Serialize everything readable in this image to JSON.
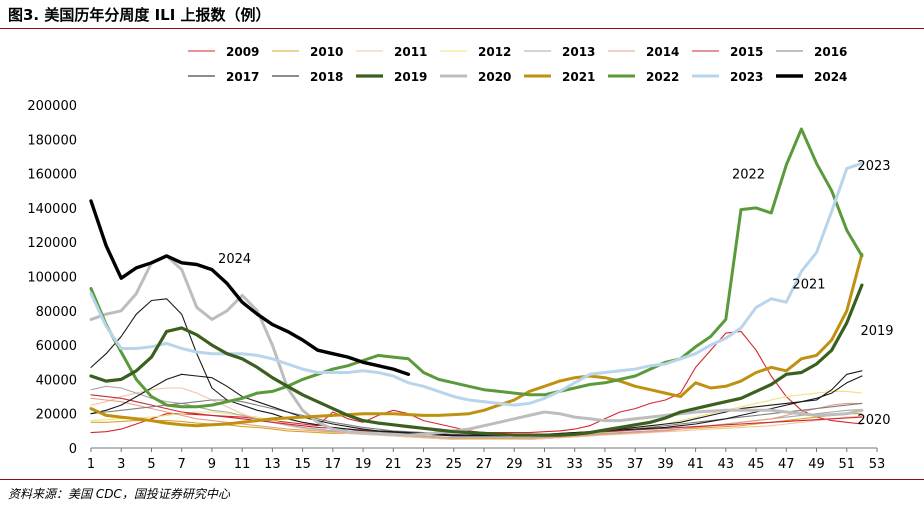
{
  "figure": {
    "title": "图3. 美国历年分周度 ILI 上报数（例）",
    "source": "资料来源：美国 CDC，国投证券研究中心"
  },
  "chart_data": {
    "type": "line",
    "xlim": [
      1,
      53
    ],
    "ylim": [
      0,
      200000
    ],
    "x_ticks": [
      1,
      3,
      5,
      7,
      9,
      11,
      13,
      15,
      17,
      19,
      21,
      23,
      25,
      27,
      29,
      31,
      33,
      35,
      37,
      39,
      41,
      43,
      45,
      47,
      49,
      51,
      53
    ],
    "y_ticks": [
      0,
      20000,
      40000,
      60000,
      80000,
      100000,
      120000,
      140000,
      160000,
      180000,
      200000
    ],
    "legend_position": "top",
    "grid": false,
    "annotations": [
      {
        "text": "2024",
        "x": 10.5,
        "y": 108000
      },
      {
        "text": "2022",
        "x": 44.5,
        "y": 157000
      },
      {
        "text": "2023",
        "x": 52.8,
        "y": 162000
      },
      {
        "text": "2021",
        "x": 48.5,
        "y": 93000
      },
      {
        "text": "2019",
        "x": 53.0,
        "y": 66000
      },
      {
        "text": "2020",
        "x": 52.8,
        "y": 14000
      }
    ],
    "series": [
      {
        "name": "2009",
        "color": "#d9262b",
        "width": 1.1,
        "start": 1,
        "values": [
          9000,
          9500,
          11000,
          14000,
          17000,
          20000,
          20000,
          19500,
          19000,
          18500,
          18000,
          17000,
          16000,
          15000,
          14000,
          13000,
          21000,
          17000,
          15000,
          19000,
          22000,
          20000,
          16000,
          14000,
          12000,
          10000,
          9000,
          9000,
          9000,
          9000,
          9500,
          10000,
          11000,
          13000,
          17000,
          21000,
          23000,
          26000,
          28000,
          32000,
          47000,
          57000,
          67000,
          68000,
          57000,
          42000,
          30000,
          22000,
          18000,
          16000,
          15000,
          14000
        ]
      },
      {
        "name": "2010",
        "color": "#d7a624",
        "width": 1.1,
        "start": 1,
        "values": [
          15000,
          15000,
          15500,
          16000,
          16000,
          16000,
          15500,
          14500,
          14000,
          13500,
          12500,
          12000,
          11000,
          10000,
          9500,
          9000,
          8500,
          8500,
          8000,
          7500,
          7000,
          6500,
          6000,
          5500,
          5000,
          5000,
          5000,
          5000,
          5000,
          5000,
          5500,
          6000,
          6500,
          7000,
          8000,
          8500,
          9000,
          9500,
          10000,
          11000,
          11500,
          12000,
          12500,
          13000,
          14000,
          15000,
          16000,
          17000,
          18000,
          19000,
          20000,
          20000
        ]
      },
      {
        "name": "2011",
        "color": "#f4c3a3",
        "width": 1.1,
        "start": 1,
        "values": [
          25000,
          27000,
          30000,
          32000,
          34000,
          35000,
          35000,
          32000,
          28000,
          24000,
          20000,
          17000,
          15000,
          13000,
          11500,
          10000,
          9000,
          8500,
          8000,
          7500,
          7000,
          6500,
          6000,
          5500,
          5000,
          5000,
          5000,
          5000,
          5000,
          5000,
          5500,
          6000,
          6500,
          7000,
          7500,
          8000,
          8500,
          9000,
          9500,
          10000,
          10500,
          11000,
          11500,
          12000,
          12500,
          13000,
          14000,
          15000,
          16000,
          17000,
          18000,
          18500
        ]
      },
      {
        "name": "2012",
        "color": "#f0e37a",
        "width": 1.1,
        "start": 1,
        "values": [
          16000,
          16500,
          17000,
          17500,
          18000,
          19000,
          20000,
          21000,
          21000,
          20000,
          19000,
          18000,
          16000,
          14000,
          12000,
          10500,
          9500,
          9000,
          8500,
          8000,
          7500,
          7000,
          6500,
          6000,
          5500,
          5000,
          5000,
          5000,
          5000,
          5500,
          6000,
          6500,
          7000,
          8000,
          9000,
          10000,
          11000,
          12500,
          14000,
          16000,
          18000,
          20000,
          22000,
          24000,
          26000,
          28000,
          30000,
          31000,
          32000,
          33000,
          33000,
          32000
        ]
      },
      {
        "name": "2013",
        "color": "#a8a8a8",
        "width": 1.1,
        "start": 1,
        "values": [
          34000,
          36000,
          35000,
          32000,
          29000,
          27000,
          26000,
          24000,
          22000,
          21000,
          19000,
          17000,
          15000,
          13500,
          12000,
          11000,
          10000,
          9500,
          9000,
          8500,
          8000,
          7500,
          7000,
          6500,
          6000,
          6000,
          6000,
          6000,
          6000,
          6000,
          6500,
          7000,
          7500,
          8000,
          8500,
          9000,
          9500,
          10000,
          10500,
          11000,
          12000,
          13000,
          14000,
          15000,
          16000,
          17000,
          18000,
          19000,
          20000,
          21000,
          22000,
          22500
        ]
      },
      {
        "name": "2014",
        "color": "#e2a184",
        "width": 1.1,
        "start": 1,
        "values": [
          29000,
          28000,
          27000,
          25000,
          23000,
          21000,
          19000,
          17000,
          16000,
          15000,
          14000,
          13000,
          12000,
          11000,
          10500,
          10000,
          9500,
          9000,
          8500,
          8000,
          7500,
          7000,
          6500,
          6000,
          5500,
          5500,
          5500,
          5500,
          5500,
          5500,
          6000,
          6500,
          7000,
          7500,
          8000,
          8500,
          9000,
          9500,
          10000,
          11000,
          12000,
          13000,
          14000,
          15000,
          16000,
          17000,
          19000,
          21000,
          23000,
          25000,
          26000,
          26000
        ]
      },
      {
        "name": "2015",
        "color": "#c8283a",
        "width": 1.1,
        "start": 1,
        "values": [
          31000,
          30000,
          29000,
          27000,
          25000,
          23000,
          21000,
          20000,
          19000,
          18000,
          17000,
          16000,
          15000,
          14000,
          13000,
          12000,
          11500,
          11000,
          10500,
          10000,
          9500,
          9000,
          8500,
          8000,
          7500,
          7000,
          7000,
          7000,
          7000,
          7000,
          7500,
          8000,
          8500,
          9000,
          9500,
          10000,
          10500,
          11000,
          11500,
          12000,
          12500,
          13000,
          13500,
          14000,
          14500,
          15000,
          15500,
          16000,
          16500,
          17000,
          17500,
          18000
        ]
      },
      {
        "name": "2016",
        "color": "#7f7f7f",
        "width": 1.1,
        "start": 1,
        "values": [
          20000,
          21000,
          22000,
          23000,
          24000,
          25000,
          26000,
          27000,
          28000,
          28000,
          27000,
          25000,
          23000,
          21000,
          19000,
          17000,
          15000,
          13500,
          12000,
          11000,
          10000,
          9500,
          9000,
          8500,
          8000,
          7500,
          7500,
          7500,
          7500,
          7500,
          8000,
          8500,
          9000,
          9500,
          10000,
          10500,
          11000,
          12000,
          13000,
          14000,
          15000,
          16000,
          17000,
          18000,
          19000,
          20000,
          21000,
          22000,
          23000,
          24000,
          25000,
          26000
        ]
      },
      {
        "name": "2017",
        "color": "#1a1a1a",
        "width": 1.1,
        "start": 1,
        "values": [
          20000,
          22000,
          25000,
          30000,
          35000,
          40000,
          43000,
          42000,
          41000,
          36000,
          30000,
          27000,
          24000,
          21000,
          18000,
          16000,
          14000,
          12500,
          11000,
          10000,
          9500,
          9000,
          8500,
          8000,
          7500,
          7500,
          7500,
          7500,
          7500,
          7500,
          8000,
          8500,
          9000,
          9500,
          10000,
          10500,
          11000,
          11500,
          12000,
          13000,
          14000,
          15500,
          17000,
          19000,
          21000,
          23000,
          25000,
          27000,
          29000,
          32000,
          38000,
          42000
        ]
      },
      {
        "name": "2018",
        "color": "#1a1a1a",
        "width": 1.1,
        "start": 1,
        "values": [
          47000,
          55000,
          65000,
          78000,
          86000,
          87000,
          78000,
          55000,
          35000,
          28000,
          25000,
          22000,
          20000,
          17000,
          15000,
          13500,
          12000,
          11000,
          10000,
          9500,
          9000,
          8500,
          8000,
          7500,
          7000,
          7000,
          7000,
          7000,
          7000,
          7000,
          7500,
          8000,
          8500,
          9000,
          10000,
          11000,
          12000,
          13000,
          14000,
          15000,
          17000,
          19000,
          21000,
          23000,
          24000,
          25000,
          26000,
          27000,
          28000,
          34000,
          43000,
          45000
        ]
      },
      {
        "name": "2019",
        "color": "#3a5f1e",
        "width": 3.2,
        "start": 1,
        "values": [
          42000,
          39000,
          40000,
          45000,
          53000,
          68000,
          70000,
          66000,
          60000,
          55000,
          52000,
          47000,
          41000,
          36000,
          31000,
          27000,
          23000,
          19000,
          16000,
          14500,
          13500,
          12500,
          11500,
          10500,
          9500,
          9000,
          8500,
          8000,
          7500,
          7500,
          7500,
          7500,
          8000,
          9000,
          10500,
          12000,
          13500,
          15000,
          17500,
          21000,
          23000,
          25000,
          27000,
          29000,
          33000,
          37000,
          43000,
          44000,
          49000,
          57000,
          73000,
          95000
        ]
      },
      {
        "name": "2020",
        "color": "#bdbdbd",
        "width": 3.0,
        "start": 1,
        "values": [
          75000,
          78000,
          80000,
          90000,
          108000,
          112000,
          104000,
          82000,
          75000,
          80000,
          89000,
          80000,
          60000,
          35000,
          22000,
          15000,
          11000,
          9500,
          9000,
          8500,
          8000,
          7500,
          8000,
          9000,
          10000,
          11000,
          13000,
          15000,
          17000,
          19000,
          21000,
          20000,
          18000,
          17000,
          16000,
          16000,
          17000,
          18000,
          19000,
          20000,
          21000,
          21500,
          22000,
          22000,
          22000,
          22000,
          21000,
          20000,
          19000,
          19500,
          20000,
          22000
        ]
      },
      {
        "name": "2021",
        "color": "#c09010",
        "width": 3.0,
        "start": 1,
        "values": [
          23000,
          19000,
          18000,
          17000,
          16000,
          14500,
          13500,
          13000,
          13500,
          14000,
          15000,
          16000,
          17000,
          17500,
          18000,
          18500,
          19000,
          19500,
          20000,
          20000,
          20000,
          19500,
          19000,
          19000,
          19500,
          20000,
          22000,
          25000,
          28000,
          33000,
          36000,
          39000,
          41000,
          42000,
          41000,
          39000,
          36000,
          34000,
          32000,
          30000,
          38000,
          35000,
          36000,
          39000,
          44000,
          47000,
          45000,
          52000,
          54000,
          63000,
          80000,
          113000
        ]
      },
      {
        "name": "2022",
        "color": "#5a9a3a",
        "width": 3.0,
        "start": 1,
        "values": [
          93000,
          72000,
          56000,
          40000,
          30000,
          25000,
          24000,
          24000,
          25000,
          27000,
          29000,
          32000,
          33000,
          36000,
          40000,
          43000,
          46000,
          48000,
          51000,
          54000,
          53000,
          52000,
          44000,
          40000,
          38000,
          36000,
          34000,
          33000,
          32000,
          31000,
          31000,
          33000,
          35000,
          37000,
          38000,
          40000,
          42000,
          46000,
          50000,
          52000,
          59000,
          65000,
          75000,
          139000,
          140000,
          137000,
          165000,
          186000,
          166000,
          150000,
          127000,
          112000
        ]
      },
      {
        "name": "2023",
        "color": "#b9d5ec",
        "width": 3.0,
        "start": 1,
        "values": [
          90000,
          71000,
          58000,
          58000,
          59000,
          61000,
          58000,
          56000,
          55000,
          55000,
          55000,
          54000,
          52000,
          49000,
          46000,
          44000,
          44000,
          44000,
          45000,
          44000,
          42000,
          38000,
          36000,
          33000,
          30000,
          28000,
          27000,
          26000,
          25000,
          26000,
          29000,
          33000,
          38000,
          43000,
          44000,
          45000,
          46000,
          48000,
          49000,
          52000,
          55000,
          60000,
          64000,
          70000,
          82000,
          87000,
          85000,
          103000,
          114000,
          138000,
          163000,
          166000
        ]
      },
      {
        "name": "2024",
        "color": "#000000",
        "width": 3.4,
        "start": 1,
        "values": [
          144000,
          118000,
          99000,
          105000,
          108000,
          112000,
          108000,
          107000,
          104000,
          96000,
          85000,
          78000,
          72000,
          68000,
          63000,
          57000,
          55000,
          53000,
          50000,
          48000,
          46000,
          43000
        ]
      }
    ]
  }
}
